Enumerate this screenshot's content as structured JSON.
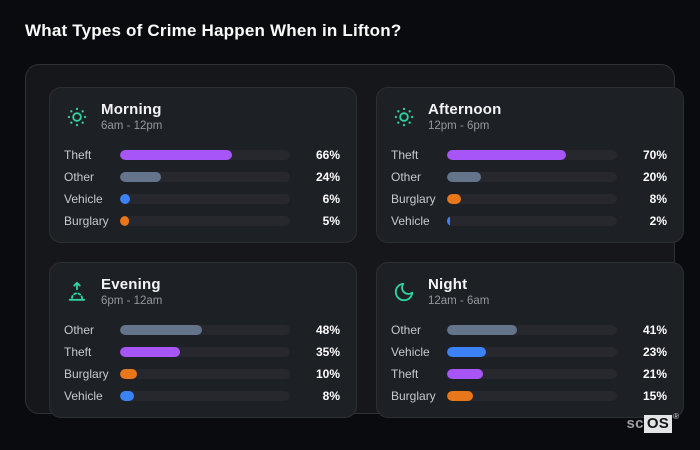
{
  "page": {
    "title": "What Types of Crime Happen When in Lifton?"
  },
  "watermark": {
    "prefix": "sc",
    "box": "OS",
    "registered": "®"
  },
  "colors": {
    "accent_teal": "#2ed3a3",
    "theft_purple": "#a855f7",
    "other_slate": "#64748b",
    "vehicle_blue": "#3b82f6",
    "burglary_orange": "#e8761a",
    "page_bg": "#0a0b0e",
    "panel_bg": "#16171b",
    "card_bg": "#1d2024",
    "track": "#26282d"
  },
  "chart_data": [
    {
      "type": "bar",
      "orientation": "horizontal",
      "title": "Morning",
      "subtitle": "6am - 12pm",
      "icon": "sun-icon",
      "xlim": [
        0,
        100
      ],
      "unit": "%",
      "categories": [
        "Theft",
        "Other",
        "Vehicle",
        "Burglary"
      ],
      "values": [
        66,
        24,
        6,
        5
      ],
      "value_labels": [
        "66%",
        "24%",
        "6%",
        "5%"
      ],
      "bar_colors": [
        "#a855f7",
        "#64748b",
        "#3b82f6",
        "#e8761a"
      ]
    },
    {
      "type": "bar",
      "orientation": "horizontal",
      "title": "Afternoon",
      "subtitle": "12pm - 6pm",
      "icon": "sun-icon",
      "xlim": [
        0,
        100
      ],
      "unit": "%",
      "categories": [
        "Theft",
        "Other",
        "Burglary",
        "Vehicle"
      ],
      "values": [
        70,
        20,
        8,
        2
      ],
      "value_labels": [
        "70%",
        "20%",
        "8%",
        "2%"
      ],
      "bar_colors": [
        "#a855f7",
        "#64748b",
        "#e8761a",
        "#3b82f6"
      ]
    },
    {
      "type": "bar",
      "orientation": "horizontal",
      "title": "Evening",
      "subtitle": "6pm - 12am",
      "icon": "sunrise-icon",
      "xlim": [
        0,
        100
      ],
      "unit": "%",
      "categories": [
        "Other",
        "Theft",
        "Burglary",
        "Vehicle"
      ],
      "values": [
        48,
        35,
        10,
        8
      ],
      "value_labels": [
        "48%",
        "35%",
        "10%",
        "8%"
      ],
      "bar_colors": [
        "#64748b",
        "#a855f7",
        "#e8761a",
        "#3b82f6"
      ]
    },
    {
      "type": "bar",
      "orientation": "horizontal",
      "title": "Night",
      "subtitle": "12am - 6am",
      "icon": "moon-icon",
      "xlim": [
        0,
        100
      ],
      "unit": "%",
      "categories": [
        "Other",
        "Vehicle",
        "Theft",
        "Burglary"
      ],
      "values": [
        41,
        23,
        21,
        15
      ],
      "value_labels": [
        "41%",
        "23%",
        "21%",
        "15%"
      ],
      "bar_colors": [
        "#64748b",
        "#3b82f6",
        "#a855f7",
        "#e8761a"
      ]
    }
  ]
}
